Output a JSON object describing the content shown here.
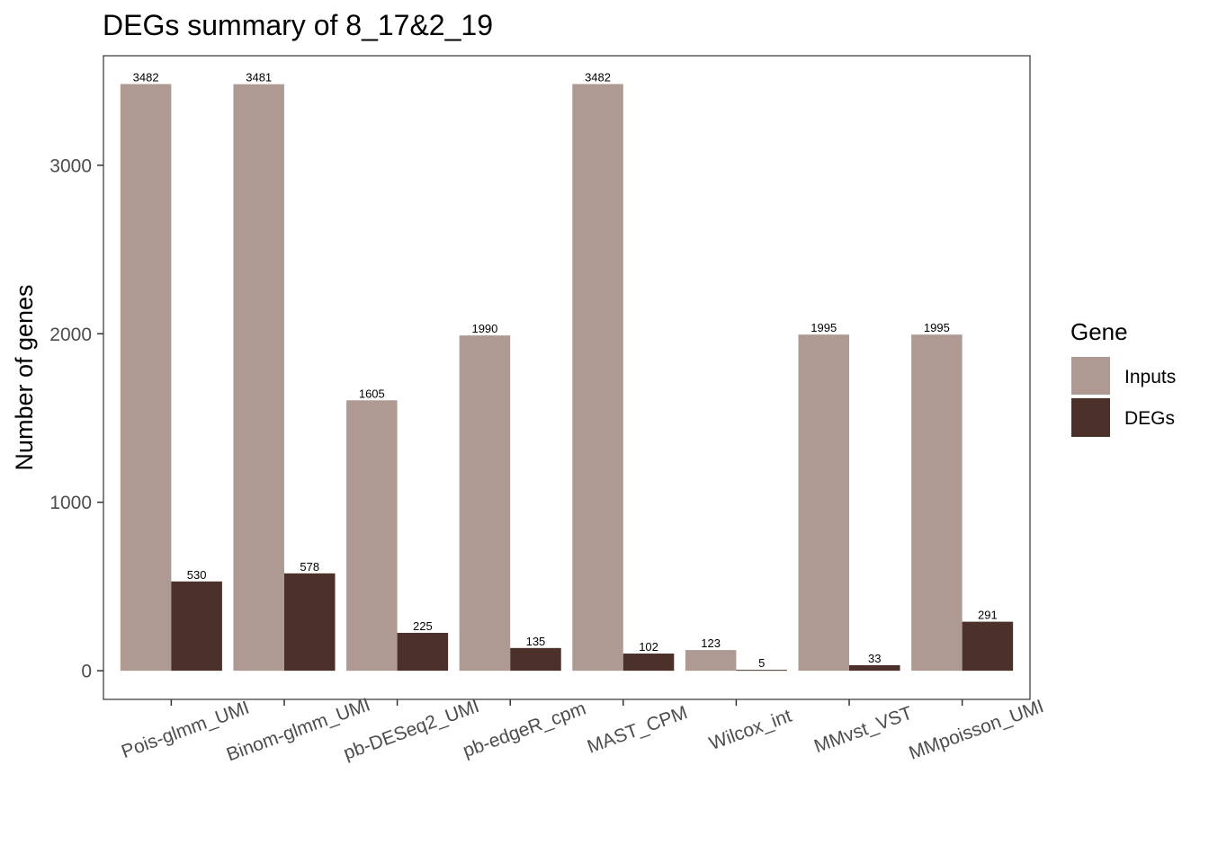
{
  "chart_data": {
    "type": "bar",
    "title": "DEGs summary of  8_17&2_19",
    "xlabel": "",
    "ylabel": "Number of genes",
    "ylim": [
      -170,
      3650
    ],
    "yticks": [
      0,
      1000,
      2000,
      3000
    ],
    "ytick_labels": [
      "0",
      "1000",
      "2000",
      "3000"
    ],
    "grid": false,
    "categories": [
      "Pois-glmm_UMI",
      "Binom-glmm_UMI",
      "pb-DESeq2_UMI",
      "pb-edgeR_cpm",
      "MAST_CPM",
      "Wilcox_int",
      "MMvst_VST",
      "MMpoisson_UMI"
    ],
    "series": [
      {
        "name": "Inputs",
        "color": "#AF9A93",
        "values": [
          3482,
          3481,
          1605,
          1990,
          3482,
          123,
          1995,
          1995
        ],
        "labels": [
          "3482",
          "3481",
          "1605",
          "1990",
          "3482",
          "123",
          "1995",
          "1995"
        ]
      },
      {
        "name": "DEGs",
        "color": "#4B312A",
        "values": [
          530,
          578,
          225,
          135,
          102,
          5,
          33,
          291
        ],
        "labels": [
          "530",
          "578",
          "225",
          "135",
          "102",
          "5",
          "33",
          "291"
        ]
      }
    ],
    "legend": {
      "title": "Gene",
      "position": "right",
      "entries": [
        "Inputs",
        "DEGs"
      ]
    }
  }
}
